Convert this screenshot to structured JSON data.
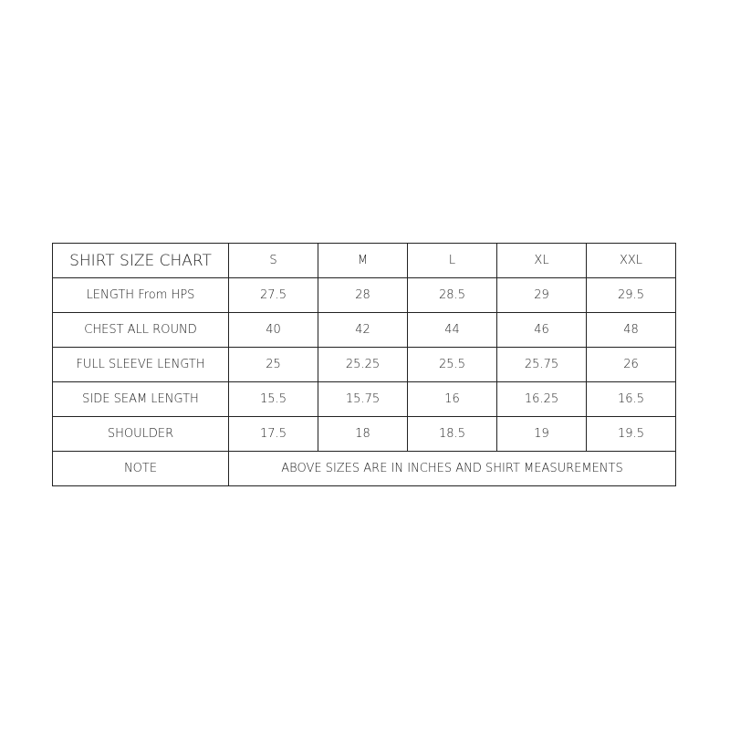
{
  "title": "SHIRT SIZE CHART",
  "sizes": [
    "S",
    "M",
    "L",
    "XL",
    "XXL"
  ],
  "rows": [
    {
      "label": "LENGTH From HPS",
      "values": [
        "27.5",
        "28",
        "28.5",
        "29",
        "29.5"
      ]
    },
    {
      "label": "CHEST ALL ROUND",
      "values": [
        "40",
        "42",
        "44",
        "46",
        "48"
      ]
    },
    {
      "label": "FULL SLEEVE LENGTH",
      "values": [
        "25",
        "25.25",
        "25.5",
        "25.75",
        "26"
      ]
    },
    {
      "label": "SIDE SEAM LENGTH",
      "values": [
        "15.5",
        "15.75",
        "16",
        "16.25",
        "16.5"
      ]
    },
    {
      "label": "SHOULDER",
      "values": [
        "17.5",
        "18",
        "18.5",
        "19",
        "19.5"
      ]
    }
  ],
  "note": {
    "label": "NOTE",
    "text": "ABOVE SIZES ARE IN INCHES AND SHIRT MEASUREMENTS"
  }
}
